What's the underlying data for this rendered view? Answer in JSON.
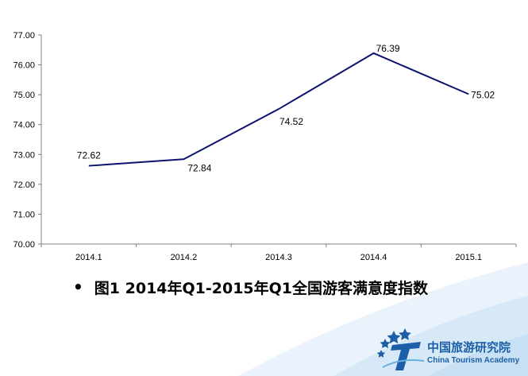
{
  "chart_data": {
    "type": "line",
    "categories": [
      "2014.1",
      "2014.2",
      "2014.3",
      "2014.4",
      "2015.1"
    ],
    "series": [
      {
        "values": [
          72.62,
          72.84,
          74.52,
          76.39,
          75.02
        ],
        "color": "#0d1470"
      }
    ],
    "data_labels": [
      "72.62",
      "72.84",
      "74.52",
      "76.39",
      "75.02"
    ],
    "ylim": [
      70,
      77
    ],
    "y_ticks": [
      "70.00",
      "71.00",
      "72.00",
      "73.00",
      "74.00",
      "75.00",
      "76.00",
      "77.00"
    ],
    "grid": false,
    "legend": "none"
  },
  "caption": {
    "bullet": "•",
    "text": "图1 2014年Q1-2015年Q1全国游客满意度指数"
  },
  "logo": {
    "name_cn": "中国旅游研究院",
    "name_en": "China Tourism Academy",
    "color": "#1c5fa8"
  }
}
